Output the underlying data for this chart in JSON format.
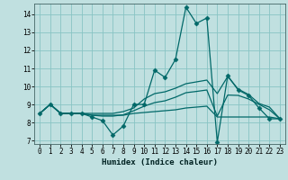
{
  "xlabel": "Humidex (Indice chaleur)",
  "bg_color": "#c0e0e0",
  "grid_color": "#88c4c4",
  "line_color": "#006868",
  "xlim": [
    -0.5,
    23.5
  ],
  "ylim": [
    6.8,
    14.6
  ],
  "yticks": [
    7,
    8,
    9,
    10,
    11,
    12,
    13,
    14
  ],
  "xticks": [
    0,
    1,
    2,
    3,
    4,
    5,
    6,
    7,
    8,
    9,
    10,
    11,
    12,
    13,
    14,
    15,
    16,
    17,
    18,
    19,
    20,
    21,
    22,
    23
  ],
  "lines": [
    {
      "x": [
        0,
        1,
        2,
        3,
        4,
        5,
        6,
        7,
        8,
        9,
        10,
        11,
        12,
        13,
        14,
        15,
        16,
        17,
        18,
        19,
        20,
        21,
        22,
        23
      ],
      "y": [
        8.5,
        9.0,
        8.5,
        8.5,
        8.5,
        8.3,
        8.1,
        7.3,
        7.8,
        9.0,
        9.0,
        10.9,
        10.5,
        11.5,
        14.4,
        13.5,
        13.8,
        6.9,
        10.6,
        9.8,
        9.5,
        8.8,
        8.2,
        8.2
      ],
      "marker": "D",
      "markersize": 2.5
    },
    {
      "x": [
        0,
        1,
        2,
        3,
        4,
        5,
        6,
        7,
        8,
        9,
        10,
        11,
        12,
        13,
        14,
        15,
        16,
        17,
        18,
        19,
        20,
        21,
        22,
        23
      ],
      "y": [
        8.5,
        9.0,
        8.5,
        8.5,
        8.5,
        8.4,
        8.4,
        8.4,
        8.4,
        8.5,
        8.55,
        8.6,
        8.65,
        8.7,
        8.8,
        8.85,
        8.9,
        8.3,
        8.3,
        8.3,
        8.3,
        8.3,
        8.3,
        8.2
      ],
      "marker": null,
      "markersize": 0
    },
    {
      "x": [
        0,
        1,
        2,
        3,
        4,
        5,
        6,
        7,
        8,
        9,
        10,
        11,
        12,
        13,
        14,
        15,
        16,
        17,
        18,
        19,
        20,
        21,
        22,
        23
      ],
      "y": [
        8.5,
        9.0,
        8.5,
        8.5,
        8.5,
        8.5,
        8.5,
        8.5,
        8.6,
        8.8,
        9.3,
        9.6,
        9.7,
        9.9,
        10.15,
        10.25,
        10.35,
        9.6,
        10.55,
        9.85,
        9.55,
        9.05,
        8.85,
        8.2
      ],
      "marker": null,
      "markersize": 0
    },
    {
      "x": [
        0,
        1,
        2,
        3,
        4,
        5,
        6,
        7,
        8,
        9,
        10,
        11,
        12,
        13,
        14,
        15,
        16,
        17,
        18,
        19,
        20,
        21,
        22,
        23
      ],
      "y": [
        8.5,
        9.0,
        8.5,
        8.5,
        8.5,
        8.4,
        8.35,
        8.35,
        8.42,
        8.65,
        8.9,
        9.1,
        9.2,
        9.4,
        9.65,
        9.72,
        9.8,
        8.35,
        9.52,
        9.5,
        9.3,
        9.0,
        8.7,
        8.2
      ],
      "marker": null,
      "markersize": 0
    }
  ]
}
